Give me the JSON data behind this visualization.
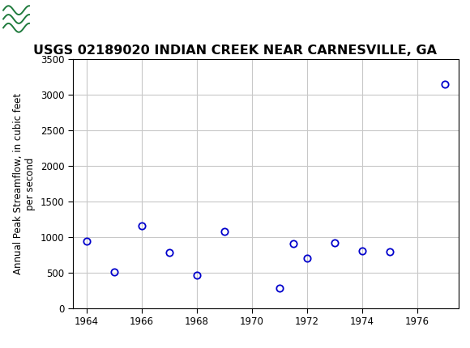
{
  "title": "USGS 02189020 INDIAN CREEK NEAR CARNESVILLE, GA",
  "ylabel_line1": "Annual Peak Streamflow, in cubic feet",
  "ylabel_line2": "per second",
  "data_points": [
    [
      1964,
      940
    ],
    [
      1965,
      505
    ],
    [
      1966,
      1155
    ],
    [
      1967,
      775
    ],
    [
      1968,
      460
    ],
    [
      1969,
      1080
    ],
    [
      1971,
      285
    ],
    [
      1971.5,
      900
    ],
    [
      1972,
      700
    ],
    [
      1973,
      920
    ],
    [
      1974,
      800
    ],
    [
      1975,
      790
    ],
    [
      1977,
      3150
    ]
  ],
  "marker_color": "#0000cc",
  "marker_facecolor": "none",
  "marker_style": "o",
  "marker_size": 6,
  "marker_linewidth": 1.3,
  "xlim": [
    1963.5,
    1977.5
  ],
  "ylim": [
    0,
    3500
  ],
  "xticks": [
    1964,
    1966,
    1968,
    1970,
    1972,
    1974,
    1976
  ],
  "yticks": [
    0,
    500,
    1000,
    1500,
    2000,
    2500,
    3000,
    3500
  ],
  "grid_color": "#c8c8c8",
  "background_color": "#ffffff",
  "header_bg_color": "#1e7a3c",
  "title_fontsize": 11.5,
  "ylabel_fontsize": 8.5,
  "tick_fontsize": 8.5
}
